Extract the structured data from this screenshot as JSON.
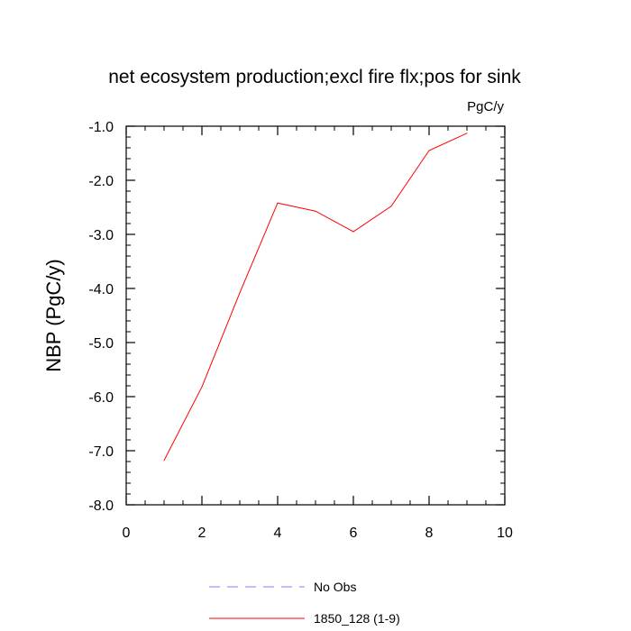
{
  "chart_data": {
    "type": "line",
    "title": "net ecosystem production;excl fire flx;pos for sink",
    "units": "PgC/y",
    "ylabel": "NBP  (PgC/y)",
    "xlabel": "",
    "xlim": [
      0,
      10
    ],
    "ylim": [
      -8.0,
      -1.0
    ],
    "x_ticks": [
      0,
      2,
      4,
      6,
      8,
      10
    ],
    "x_tick_labels": [
      "0",
      "2",
      "4",
      "6",
      "8",
      "10"
    ],
    "y_ticks": [
      -8.0,
      -7.0,
      -6.0,
      -5.0,
      -4.0,
      -3.0,
      -2.0,
      -1.0
    ],
    "y_tick_labels": [
      "-8.0",
      "-7.0",
      "-6.0",
      "-5.0",
      "-4.0",
      "-3.0",
      "-2.0",
      "-1.0"
    ],
    "grid": false,
    "legend_position": "bottom",
    "series": [
      {
        "name": "1850_128 (1-9)",
        "color": "#ff0000",
        "dash": "solid",
        "x": [
          1,
          2,
          3,
          4,
          5,
          6,
          7,
          8,
          9
        ],
        "y": [
          -7.18,
          -5.82,
          -4.08,
          -2.42,
          -2.57,
          -2.95,
          -2.48,
          -1.45,
          -1.13
        ]
      }
    ],
    "legend": [
      {
        "label": "No Obs",
        "color": "#8080ff",
        "dash": "dashed"
      },
      {
        "label": "1850_128 (1-9)",
        "color": "#ff0000",
        "dash": "solid"
      }
    ]
  }
}
